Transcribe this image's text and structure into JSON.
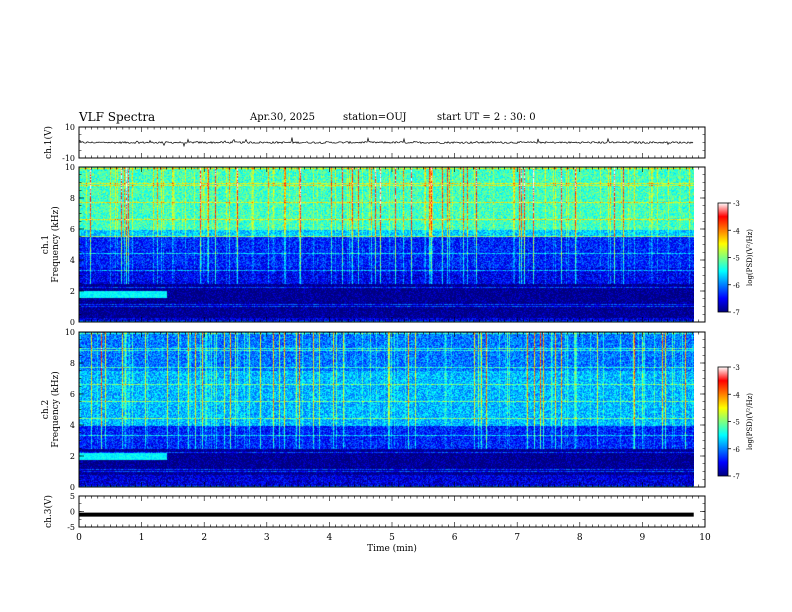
{
  "header": {
    "title": "VLF Spectra",
    "date": "Apr.30, 2025",
    "station": "station=OUJ",
    "start": "start  UT =   2 : 30: 0"
  },
  "chart_data": [
    {
      "type": "line",
      "ylabel": "ch.1(V)",
      "ylim": [
        -10,
        10
      ],
      "y_ticks": [
        "10",
        "-10"
      ],
      "xlim": [
        0,
        10
      ],
      "x_coverage": [
        0,
        9.82
      ],
      "mean_level": 0,
      "noise_amplitude": 1.2,
      "spike_amplitude": 3,
      "color": "#000000"
    },
    {
      "type": "heatmap",
      "ylabel": "ch.1 Frequency (kHz)",
      "ylim": [
        0,
        10
      ],
      "y_ticks": [
        "0",
        "2",
        "4",
        "6",
        "8",
        "10"
      ],
      "xlim": [
        0,
        10
      ],
      "x_coverage": [
        0,
        9.82
      ],
      "colorbar": {
        "label": "log(PSD)(V²/Hz)",
        "range": [
          -7,
          -3
        ],
        "ticks": [
          "-7",
          "-6",
          "-5",
          "-4",
          "-3"
        ]
      },
      "band_levels": [
        {
          "from": 0,
          "to": 0.3,
          "log_psd": -6.6
        },
        {
          "from": 0.3,
          "to": 2.5,
          "log_psd": -7.0
        },
        {
          "from": 2.5,
          "to": 3.5,
          "log_psd": -6.5
        },
        {
          "from": 3.5,
          "to": 5.5,
          "log_psd": -6.3
        },
        {
          "from": 5.5,
          "to": 6.0,
          "log_psd": -5.5
        },
        {
          "from": 6.0,
          "to": 10,
          "log_psd": -5.0
        }
      ],
      "early_band": {
        "time": [
          0,
          1.4
        ],
        "freq": [
          1.6,
          2.0
        ],
        "log_psd": -5.3
      }
    },
    {
      "type": "heatmap",
      "ylabel": "ch.2 Frequency (kHz)",
      "ylim": [
        0,
        10
      ],
      "y_ticks": [
        "0",
        "2",
        "4",
        "6",
        "8",
        "10"
      ],
      "xlim": [
        0,
        10
      ],
      "x_coverage": [
        0,
        9.82
      ],
      "colorbar": {
        "label": "log(PSD)(V²/Hz)",
        "range": [
          -7,
          -3
        ],
        "ticks": [
          "-7",
          "-6",
          "-5",
          "-4",
          "-3"
        ]
      },
      "band_levels": [
        {
          "from": 0,
          "to": 0.8,
          "log_psd": -6.6
        },
        {
          "from": 0.8,
          "to": 2.5,
          "log_psd": -7.0
        },
        {
          "from": 2.5,
          "to": 4.0,
          "log_psd": -6.3
        },
        {
          "from": 4.0,
          "to": 7.5,
          "log_psd": -5.6
        },
        {
          "from": 7.5,
          "to": 10,
          "log_psd": -5.9
        }
      ],
      "early_band": {
        "time": [
          0,
          1.4
        ],
        "freq": [
          1.8,
          2.2
        ],
        "log_psd": -5.3
      }
    },
    {
      "type": "line",
      "ylabel": "ch.3(V)",
      "ylim": [
        -5,
        5
      ],
      "y_ticks": [
        "5",
        "0",
        "-5"
      ],
      "xlim": [
        0,
        10
      ],
      "x_coverage": [
        0,
        9.82
      ],
      "mean_level": -1,
      "color": "#000000"
    }
  ],
  "x_axis": {
    "label": "Time  (min)",
    "ticks": [
      "0",
      "1",
      "2",
      "3",
      "4",
      "5",
      "6",
      "7",
      "8",
      "9",
      "10"
    ]
  },
  "colormap": [
    "#00007f",
    "#0000ff",
    "#007fff",
    "#00ffff",
    "#7fff7f",
    "#ffff00",
    "#ff7f00",
    "#ff0000",
    "#ffffff"
  ]
}
